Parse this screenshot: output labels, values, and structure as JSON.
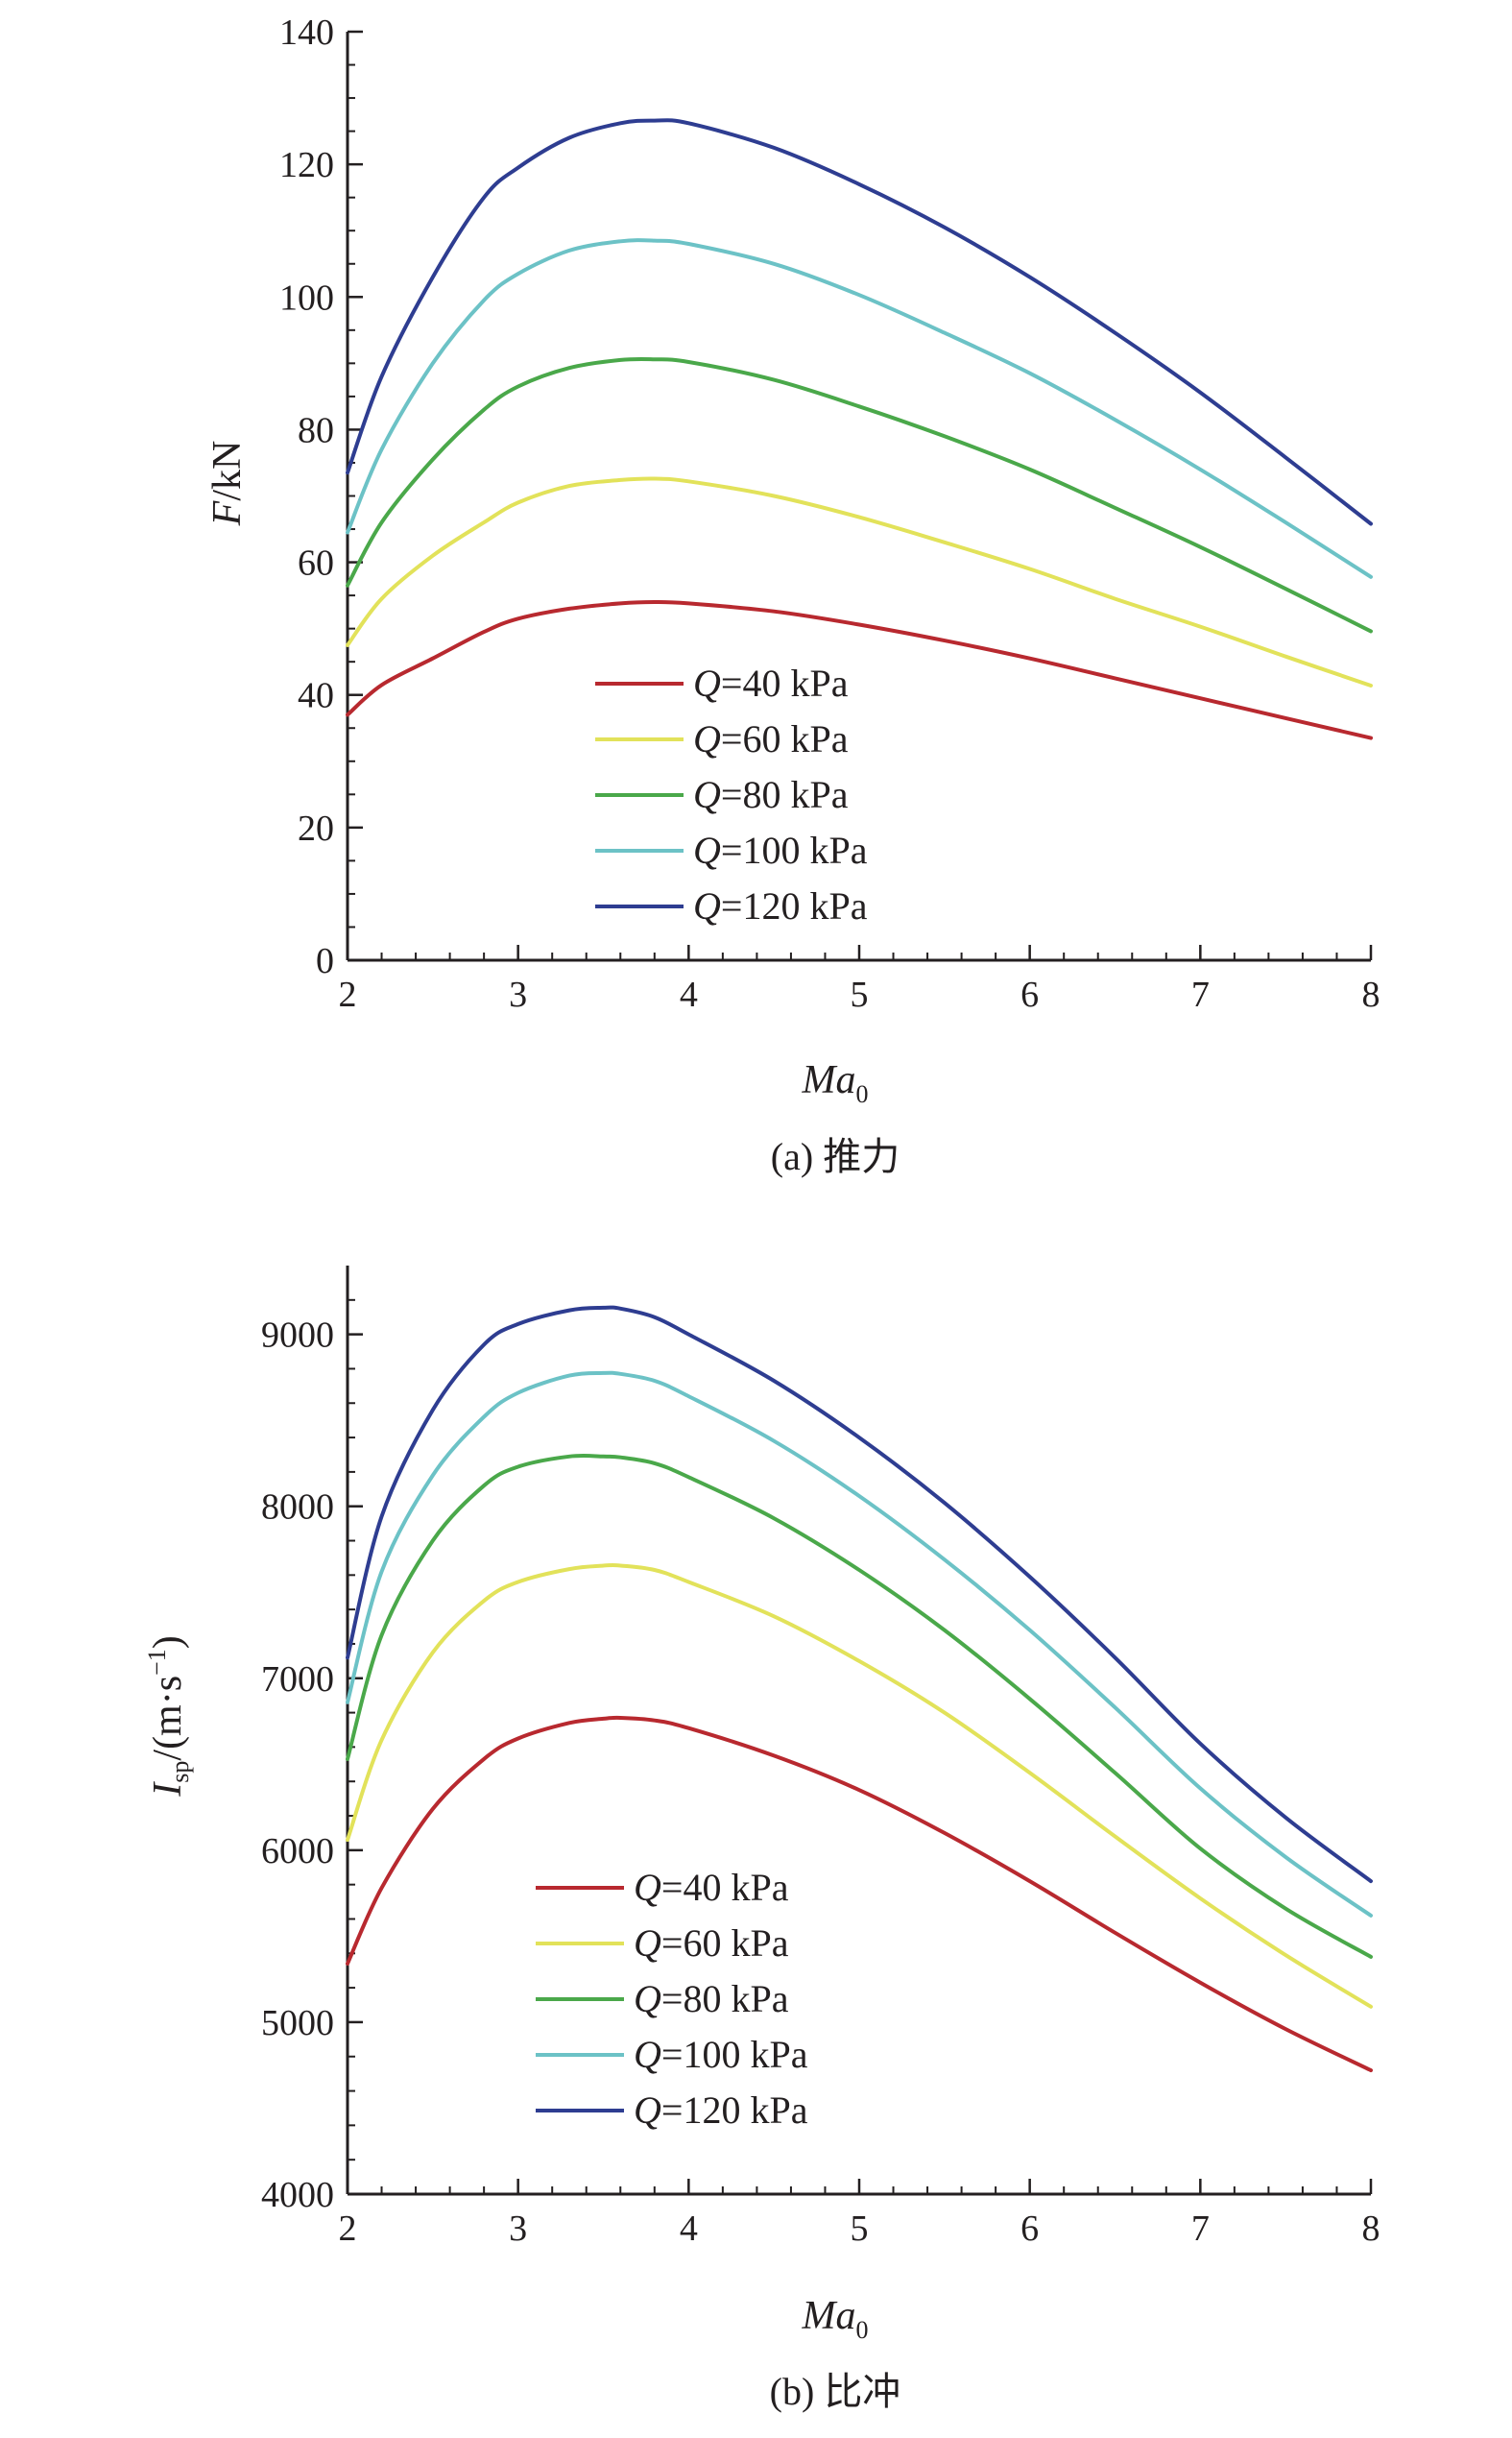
{
  "figure": {
    "chart_data": [
      {
        "type": "line",
        "caption": "(a) 推力",
        "xlabel": "Ma",
        "xlabel_sub": "0",
        "ylabel": "F",
        "ylabel_tail": "/kN",
        "xlim": [
          2,
          8
        ],
        "ylim": [
          0,
          140
        ],
        "xticks": [
          2,
          3,
          4,
          5,
          6,
          7,
          8
        ],
        "yticks": [
          0,
          20,
          40,
          60,
          80,
          100,
          120,
          140
        ],
        "x": [
          2,
          2.2,
          2.5,
          2.8,
          3,
          3.3,
          3.6,
          3.8,
          4,
          4.5,
          5,
          5.5,
          6,
          6.5,
          7,
          7.5,
          8
        ],
        "series": [
          {
            "q": "Q",
            "name": "=40 kPa",
            "color": "#b8292f",
            "values": [
              37,
              41.5,
              45.5,
              49.5,
              51.5,
              53,
              53.8,
              54,
              53.8,
              52.6,
              50.6,
              48.2,
              45.5,
              42.5,
              39.5,
              36.5,
              33.5
            ]
          },
          {
            "q": "Q",
            "name": "=60 kPa",
            "color": "#e2e25a",
            "values": [
              47.5,
              54.5,
              61,
              66,
              69,
              71.5,
              72.4,
              72.6,
              72.2,
              70,
              66.8,
              63,
              59,
              54.5,
              50.3,
              45.8,
              41.4
            ]
          },
          {
            "q": "Q",
            "name": "=80 kPa",
            "color": "#4aa84a",
            "values": [
              56.5,
              66,
              75.5,
              83,
              86.5,
              89.3,
              90.5,
              90.6,
              90.2,
              87.5,
              83.5,
              79,
              74,
              68.2,
              62.3,
              56,
              49.6
            ]
          },
          {
            "q": "Q",
            "name": "=100 kPa",
            "color": "#6cc2c6",
            "values": [
              64.5,
              77,
              90,
              99.5,
              103.5,
              107,
              108.4,
              108.5,
              108,
              105,
              100.3,
              94.6,
              88.5,
              81.5,
              74,
              66,
              57.8
            ]
          },
          {
            "q": "Q",
            "name": "=120 kPa",
            "color": "#2e3d91",
            "values": [
              73.5,
              88,
              103,
              115,
              119.5,
              124,
              126.2,
              126.6,
              126.2,
              122.5,
              117,
              110.5,
              103,
              94.6,
              85.6,
              75.8,
              65.8
            ]
          }
        ]
      },
      {
        "type": "line",
        "caption": "(b) 比冲",
        "xlabel": "Ma",
        "xlabel_sub": "0",
        "ylabel": "I",
        "ylabel_sub": "sp",
        "ylabel_tail": "/(m·s",
        "ylabel_sup": "−1",
        "ylabel_close": ")",
        "xlim": [
          2,
          8
        ],
        "ylim": [
          4000,
          9400
        ],
        "xticks": [
          2,
          3,
          4,
          5,
          6,
          7,
          8
        ],
        "yticks": [
          4000,
          5000,
          6000,
          7000,
          8000,
          9000
        ],
        "x": [
          2,
          2.2,
          2.5,
          2.8,
          3,
          3.3,
          3.5,
          3.6,
          3.8,
          4,
          4.5,
          5,
          5.5,
          6,
          6.5,
          7,
          7.5,
          8
        ],
        "series": [
          {
            "q": "Q",
            "name": "=40 kPa",
            "color": "#b8292f",
            "values": [
              5340,
              5780,
              6240,
              6530,
              6650,
              6740,
              6765,
              6770,
              6755,
              6710,
              6550,
              6350,
              6100,
              5820,
              5520,
              5230,
              4960,
              4720
            ]
          },
          {
            "q": "Q",
            "name": "=60 kPa",
            "color": "#e2e25a",
            "values": [
              6060,
              6640,
              7150,
              7450,
              7560,
              7635,
              7655,
              7655,
              7630,
              7560,
              7360,
              7100,
              6800,
              6450,
              6080,
              5720,
              5390,
              5090
            ]
          },
          {
            "q": "Q",
            "name": "=80 kPa",
            "color": "#4aa84a",
            "values": [
              6530,
              7250,
              7800,
              8120,
              8230,
              8290,
              8290,
              8285,
              8250,
              8170,
              7930,
              7630,
              7280,
              6880,
              6450,
              6010,
              5660,
              5380
            ]
          },
          {
            "q": "Q",
            "name": "=100 kPa",
            "color": "#6cc2c6",
            "values": [
              6860,
              7620,
              8180,
              8520,
              8660,
              8760,
              8775,
              8770,
              8730,
              8640,
              8380,
              8060,
              7690,
              7280,
              6830,
              6360,
              5960,
              5620
            ]
          },
          {
            "q": "Q",
            "name": "=120 kPa",
            "color": "#2e3d91",
            "values": [
              7120,
              7940,
              8560,
              8940,
              9060,
              9140,
              9155,
              9150,
              9100,
              9000,
              8730,
              8400,
              8020,
              7590,
              7120,
              6620,
              6190,
              5820
            ]
          }
        ]
      }
    ]
  }
}
